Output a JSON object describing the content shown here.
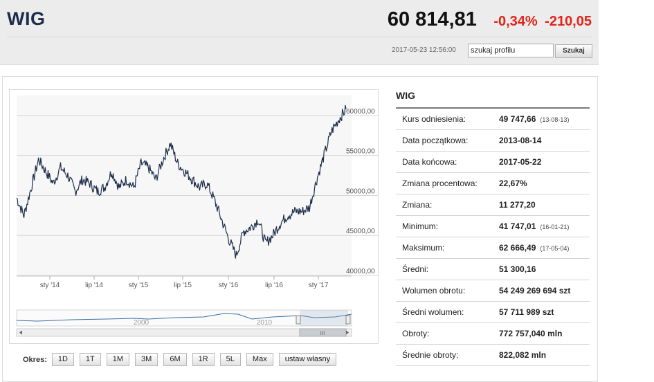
{
  "header": {
    "title": "WIG",
    "price": "60 814,81",
    "change_pct": "-0,34%",
    "change_abs": "-210,05",
    "timestamp": "2017-05-23 12:56:00",
    "search_value": "szukaj profilu",
    "search_button": "Szukaj"
  },
  "colors": {
    "accent_negative": "#e2231a",
    "title": "#1c2d4a",
    "line": "#1c2d4a"
  },
  "chart_data": {
    "type": "line",
    "title": "",
    "xlabel": "",
    "ylabel": "",
    "x_tick_labels": [
      "sty '14",
      "lip '14",
      "sty '15",
      "lip '15",
      "sty '16",
      "lip '16",
      "sty '17"
    ],
    "y_tick_labels": [
      "40000,00",
      "45000,00",
      "50000,00",
      "55000,00",
      "60000,00"
    ],
    "ylim": [
      40000,
      62500
    ],
    "grid": true,
    "series": [
      {
        "name": "",
        "x": [
          "2013-08",
          "2013-09",
          "2013-10",
          "2013-11",
          "2013-12",
          "2014-01",
          "2014-02",
          "2014-03",
          "2014-04",
          "2014-05",
          "2014-06",
          "2014-07",
          "2014-08",
          "2014-09",
          "2014-10",
          "2014-11",
          "2014-12",
          "2015-01",
          "2015-02",
          "2015-03",
          "2015-04",
          "2015-05",
          "2015-06",
          "2015-07",
          "2015-08",
          "2015-09",
          "2015-10",
          "2015-11",
          "2015-12",
          "2016-01",
          "2016-02",
          "2016-03",
          "2016-04",
          "2016-05",
          "2016-06",
          "2016-07",
          "2016-08",
          "2016-09",
          "2016-10",
          "2016-11",
          "2016-12",
          "2017-01",
          "2017-02",
          "2017-03",
          "2017-04",
          "2017-05"
        ],
        "values": [
          49700,
          47500,
          51000,
          54500,
          53000,
          51500,
          53500,
          52500,
          50500,
          52000,
          51500,
          50500,
          51000,
          53000,
          51000,
          52000,
          51000,
          54000,
          53500,
          52000,
          54500,
          56500,
          54000,
          53000,
          52000,
          51000,
          51500,
          49500,
          47000,
          44500,
          42500,
          45500,
          46000,
          47000,
          44000,
          45000,
          46500,
          47500,
          48000,
          48000,
          48500,
          52000,
          55000,
          58000,
          59500,
          60800
        ]
      }
    ],
    "navigator": {
      "x_tick_labels": [
        "2000",
        "2010"
      ]
    }
  },
  "periods": {
    "label": "Okres:",
    "buttons": [
      "1D",
      "1T",
      "1M",
      "3M",
      "6M",
      "1R",
      "5L",
      "Max",
      "ustaw własny"
    ]
  },
  "stats": {
    "title": "WIG",
    "rows": [
      {
        "label": "Kurs odniesienia:",
        "value": "49 747,66",
        "date": "(13-08-13)"
      },
      {
        "label": "Data początkowa:",
        "value": "2013-08-14",
        "date": ""
      },
      {
        "label": "Data końcowa:",
        "value": "2017-05-22",
        "date": ""
      },
      {
        "label": "Zmiana procentowa:",
        "value": "22,67%",
        "date": ""
      },
      {
        "label": "Zmiana:",
        "value": "11 277,20",
        "date": ""
      },
      {
        "label": "Minimum:",
        "value": "41 747,01",
        "date": "(16-01-21)"
      },
      {
        "label": "Maksimum:",
        "value": "62 666,49",
        "date": "(17-05-04)"
      },
      {
        "label": "Średni:",
        "value": "51 300,16",
        "date": ""
      },
      {
        "label": "Wolumen obrotu:",
        "value": "54 249 269 694 szt",
        "date": ""
      },
      {
        "label": "Średni wolumen:",
        "value": "57 711 989 szt",
        "date": ""
      },
      {
        "label": "Obroty:",
        "value": "772 757,040 mln",
        "date": ""
      },
      {
        "label": "Średnie obroty:",
        "value": "822,082 mln",
        "date": ""
      }
    ]
  }
}
